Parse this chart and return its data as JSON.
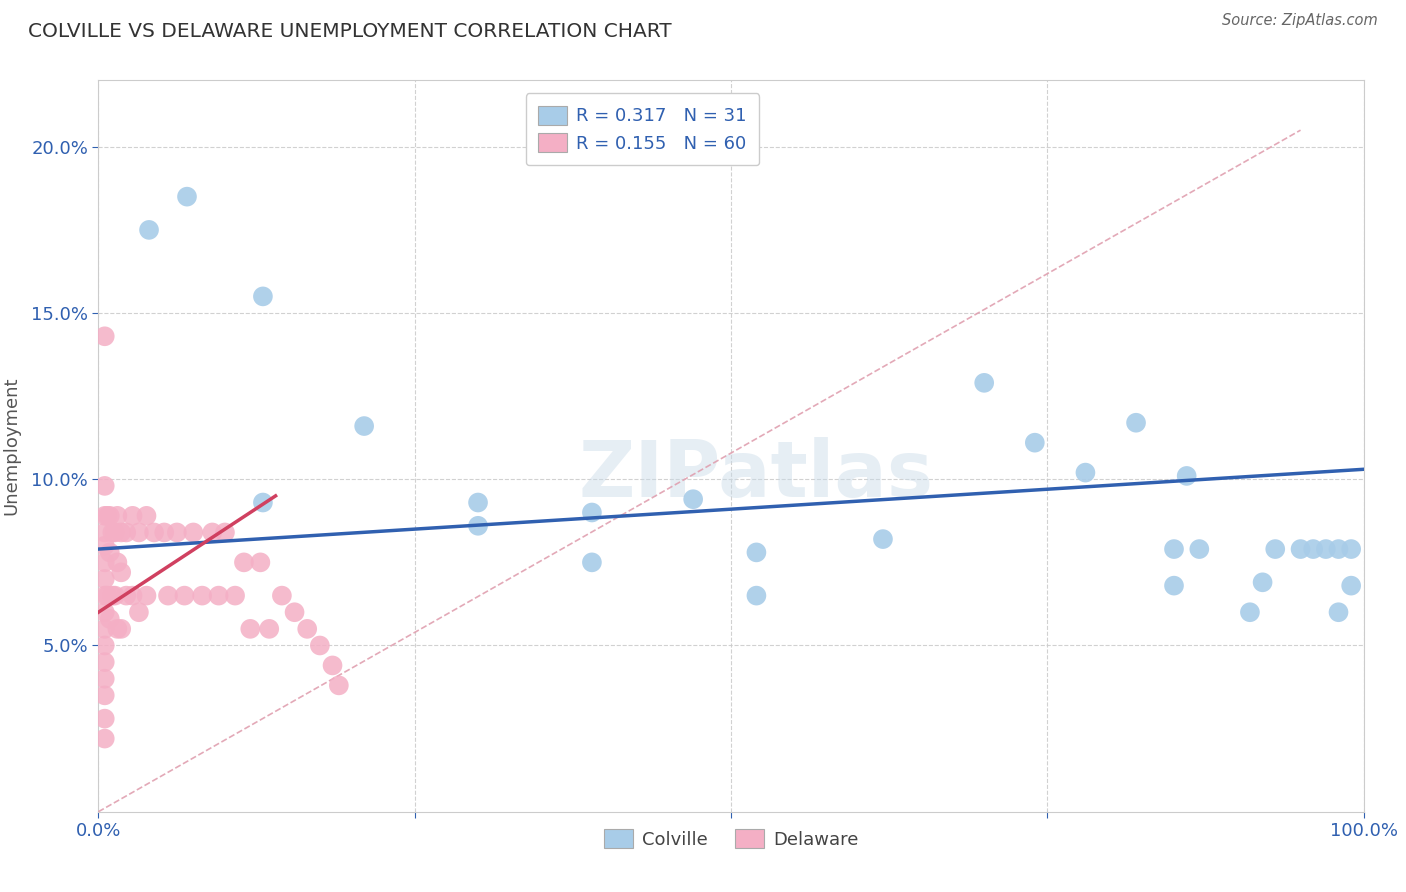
{
  "title": "COLVILLE VS DELAWARE UNEMPLOYMENT CORRELATION CHART",
  "source": "Source: ZipAtlas.com",
  "ylabel": "Unemployment",
  "xlim": [
    0.0,
    1.0
  ],
  "ylim": [
    0.0,
    0.22
  ],
  "xtick_positions": [
    0.0,
    0.25,
    0.5,
    0.75,
    1.0
  ],
  "xtick_labels": [
    "0.0%",
    "",
    "",
    "",
    "100.0%"
  ],
  "ytick_positions": [
    0.05,
    0.1,
    0.15,
    0.2
  ],
  "ytick_labels": [
    "5.0%",
    "10.0%",
    "15.0%",
    "20.0%"
  ],
  "colville_R": 0.317,
  "colville_N": 31,
  "delaware_R": 0.155,
  "delaware_N": 60,
  "colville_color": "#a8cce8",
  "delaware_color": "#f4afc5",
  "colville_line_color": "#3060b0",
  "delaware_line_color": "#d04060",
  "diagonal_color": "#e0a0b0",
  "watermark": "ZIPatlas",
  "colville_x": [
    0.04,
    0.07,
    0.13,
    0.13,
    0.21,
    0.3,
    0.3,
    0.39,
    0.39,
    0.47,
    0.52,
    0.52,
    0.62,
    0.7,
    0.74,
    0.78,
    0.82,
    0.85,
    0.85,
    0.86,
    0.87,
    0.91,
    0.92,
    0.93,
    0.95,
    0.96,
    0.97,
    0.98,
    0.98,
    0.99,
    0.99
  ],
  "colville_y": [
    0.175,
    0.185,
    0.155,
    0.093,
    0.116,
    0.093,
    0.086,
    0.09,
    0.075,
    0.094,
    0.078,
    0.065,
    0.082,
    0.129,
    0.111,
    0.102,
    0.117,
    0.079,
    0.068,
    0.101,
    0.079,
    0.06,
    0.069,
    0.079,
    0.079,
    0.079,
    0.079,
    0.079,
    0.06,
    0.068,
    0.079
  ],
  "delaware_x": [
    0.005,
    0.005,
    0.005,
    0.005,
    0.005,
    0.005,
    0.005,
    0.005,
    0.005,
    0.005,
    0.005,
    0.005,
    0.005,
    0.005,
    0.005,
    0.005,
    0.007,
    0.007,
    0.009,
    0.009,
    0.009,
    0.011,
    0.011,
    0.013,
    0.013,
    0.015,
    0.015,
    0.015,
    0.018,
    0.018,
    0.018,
    0.022,
    0.022,
    0.027,
    0.027,
    0.032,
    0.032,
    0.038,
    0.038,
    0.044,
    0.052,
    0.055,
    0.062,
    0.068,
    0.075,
    0.082,
    0.09,
    0.095,
    0.1,
    0.108,
    0.115,
    0.12,
    0.128,
    0.135,
    0.145,
    0.155,
    0.165,
    0.175,
    0.185,
    0.19
  ],
  "delaware_y": [
    0.143,
    0.098,
    0.089,
    0.084,
    0.08,
    0.075,
    0.07,
    0.065,
    0.06,
    0.055,
    0.05,
    0.045,
    0.04,
    0.035,
    0.028,
    0.022,
    0.089,
    0.065,
    0.089,
    0.078,
    0.058,
    0.084,
    0.065,
    0.084,
    0.065,
    0.089,
    0.075,
    0.055,
    0.084,
    0.072,
    0.055,
    0.084,
    0.065,
    0.089,
    0.065,
    0.084,
    0.06,
    0.089,
    0.065,
    0.084,
    0.084,
    0.065,
    0.084,
    0.065,
    0.084,
    0.065,
    0.084,
    0.065,
    0.084,
    0.065,
    0.075,
    0.055,
    0.075,
    0.055,
    0.065,
    0.06,
    0.055,
    0.05,
    0.044,
    0.038
  ],
  "colville_line_x": [
    0.0,
    1.0
  ],
  "colville_line_y": [
    0.079,
    0.103
  ],
  "delaware_line_x": [
    0.0,
    0.14
  ],
  "delaware_line_y": [
    0.06,
    0.095
  ]
}
